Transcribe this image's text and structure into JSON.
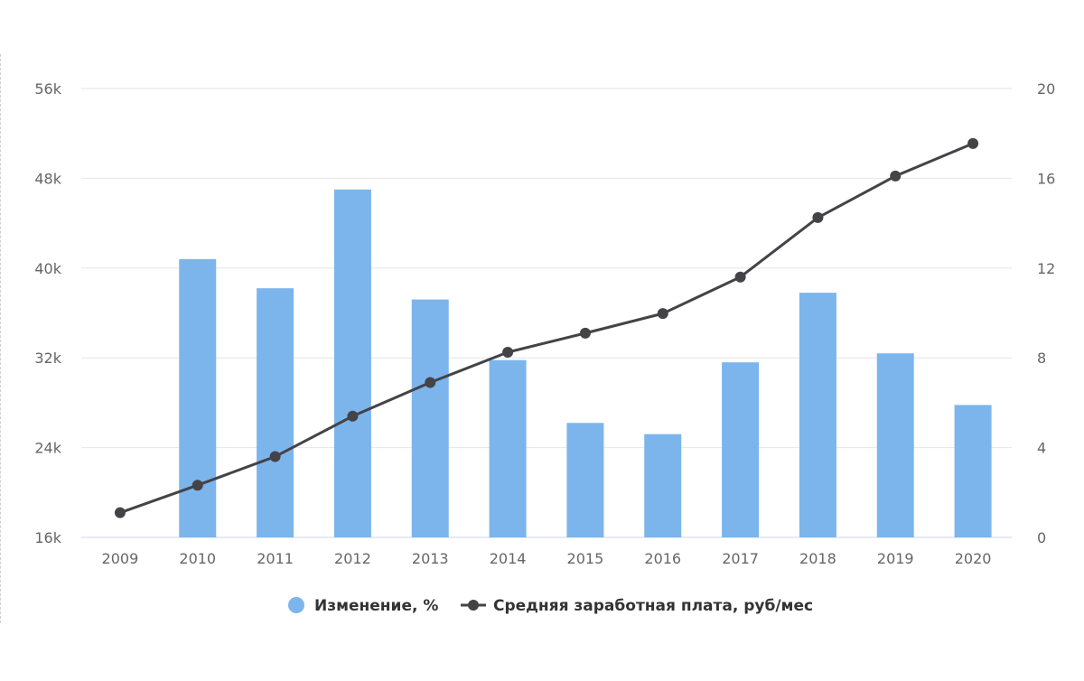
{
  "chart_data": {
    "type": "bar+line",
    "categories": [
      "2009",
      "2010",
      "2011",
      "2012",
      "2013",
      "2014",
      "2015",
      "2016",
      "2017",
      "2018",
      "2019",
      "2020"
    ],
    "series": [
      {
        "name": "Изменение, %",
        "type": "bar",
        "axis": "right",
        "color": "#7cb5ec",
        "values": [
          null,
          12.4,
          11.1,
          15.5,
          10.6,
          7.9,
          5.1,
          4.6,
          7.8,
          10.9,
          8.2,
          5.9
        ]
      },
      {
        "name": "Средняя заработная плата, руб/мес",
        "type": "line",
        "axis": "left",
        "color": "#434348",
        "values": [
          18200,
          20650,
          23200,
          26800,
          29800,
          32500,
          34200,
          35950,
          39200,
          44500,
          48200,
          51100
        ]
      }
    ],
    "y_left": {
      "min": 16000,
      "max": 56000,
      "ticks": [
        "16k",
        "24k",
        "32k",
        "40k",
        "48k",
        "56k"
      ]
    },
    "y_right": {
      "min": 0,
      "max": 20,
      "ticks": [
        "0",
        "4",
        "8",
        "12",
        "16",
        "20"
      ]
    },
    "grid": true,
    "legend_position": "bottom-center",
    "title": "",
    "xlabel": "",
    "ylabel": ""
  }
}
